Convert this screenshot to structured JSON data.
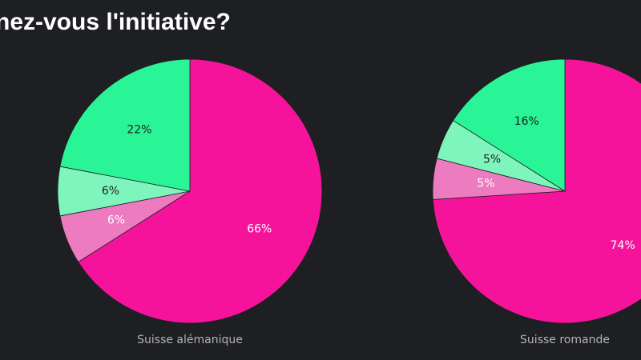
{
  "title": "nez-vous l'initiative?",
  "colors": {
    "background": "#1e1f22",
    "magenta": "#f5139b",
    "pink": "#ec7bc0",
    "light_green": "#7ef5bd",
    "green": "#2af596",
    "caption": "#b3b3b3"
  },
  "chart_data": [
    {
      "type": "pie",
      "title": "Suisse alémanique",
      "slices": [
        {
          "value": 66,
          "label": "66%",
          "color": "#f5139b"
        },
        {
          "value": 6,
          "label": "6%",
          "color": "#ec7bc0"
        },
        {
          "value": 6,
          "label": "6%",
          "color": "#7ef5bd"
        },
        {
          "value": 22,
          "label": "22%",
          "color": "#2af596"
        }
      ]
    },
    {
      "type": "pie",
      "title": "Suisse romande",
      "slices": [
        {
          "value": 74,
          "label": "74%",
          "color": "#f5139b"
        },
        {
          "value": 5,
          "label": "5%",
          "color": "#ec7bc0"
        },
        {
          "value": 5,
          "label": "5%",
          "color": "#7ef5bd"
        },
        {
          "value": 16,
          "label": "16%",
          "color": "#2af596"
        }
      ]
    }
  ]
}
